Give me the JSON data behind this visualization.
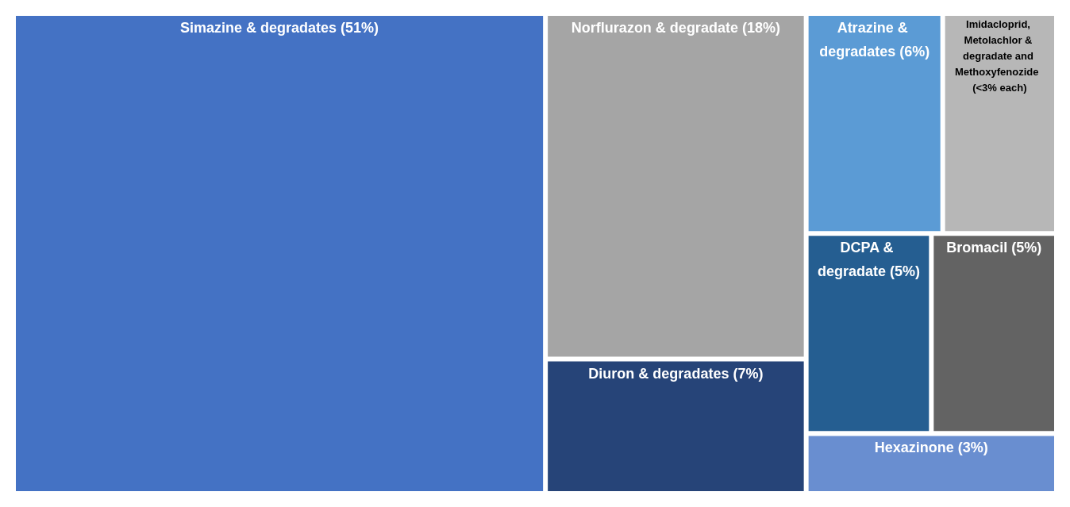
{
  "chart_data": {
    "type": "other",
    "categories": [
      "Simazine & degradates",
      "Norflurazon & degradate",
      "Diuron & degradates",
      "Atrazine & degradates",
      "Bromacil",
      "Hexazinone",
      "DCPA & degradate",
      "Imidacloprid, Metolachlor & degradate and Methoxyfenozide"
    ],
    "values": [
      51,
      18,
      7,
      6,
      5,
      3,
      5,
      null
    ],
    "value_labels": [
      "(51%)",
      "(18%)",
      "(7%)",
      "(6%)",
      "(5%)",
      "(3%)",
      "(5%)",
      "(<3% each)"
    ],
    "colors": [
      "#4472c4",
      "#a5a5a5",
      "#264478",
      "#5b9bd5",
      "#636363",
      "#698ed0",
      "#255e91",
      "#b7b7b7"
    ]
  }
}
